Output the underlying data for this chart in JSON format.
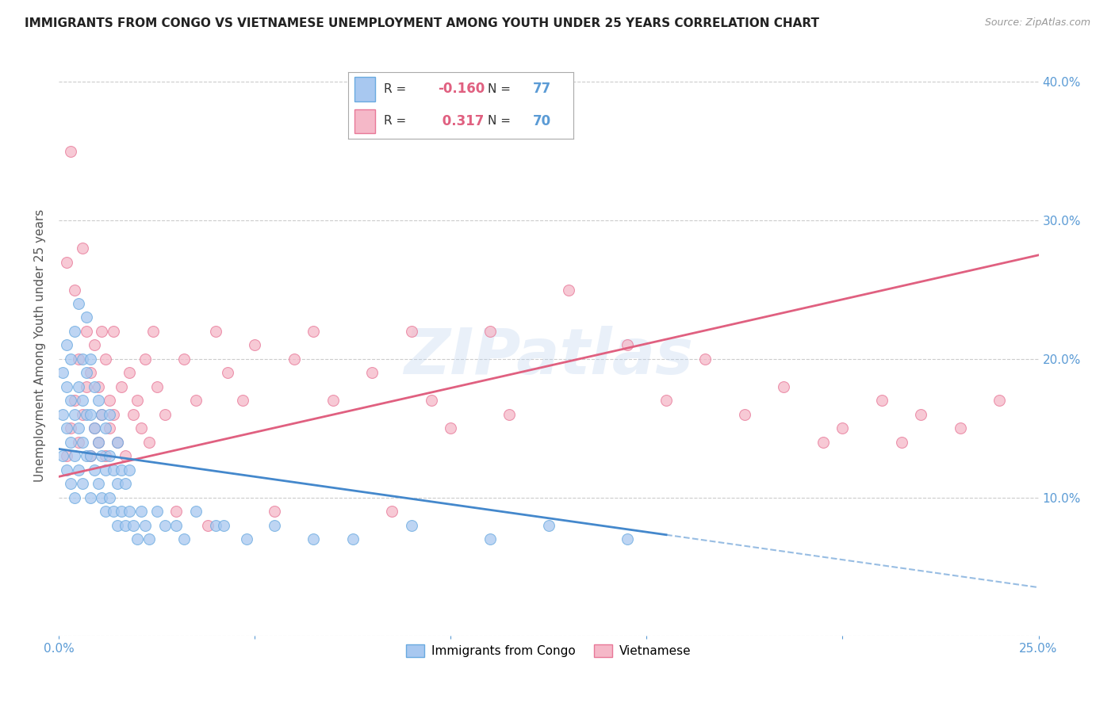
{
  "title": "IMMIGRANTS FROM CONGO VS VIETNAMESE UNEMPLOYMENT AMONG YOUTH UNDER 25 YEARS CORRELATION CHART",
  "source": "Source: ZipAtlas.com",
  "ylabel": "Unemployment Among Youth under 25 years",
  "xlim": [
    0.0,
    0.25
  ],
  "ylim": [
    0.0,
    0.42
  ],
  "yticks": [
    0.0,
    0.1,
    0.2,
    0.3,
    0.4
  ],
  "ytick_labels_right": [
    "",
    "10.0%",
    "20.0%",
    "30.0%",
    "40.0%"
  ],
  "xticks": [
    0.0,
    0.05,
    0.1,
    0.15,
    0.2,
    0.25
  ],
  "xtick_labels": [
    "0.0%",
    "",
    "",
    "",
    "",
    "25.0%"
  ],
  "congo_color": "#a8c8f0",
  "viet_color": "#f5b8c8",
  "congo_edge_color": "#6aaae0",
  "viet_edge_color": "#e87898",
  "congo_line_color": "#4488cc",
  "viet_line_color": "#e06080",
  "congo_R": -0.16,
  "congo_N": 77,
  "viet_R": 0.317,
  "viet_N": 70,
  "legend_label1": "Immigrants from Congo",
  "legend_label2": "Vietnamese",
  "watermark": "ZIPatlas",
  "title_color": "#222222",
  "axis_label_color": "#5b9bd5",
  "grid_color": "#cccccc",
  "congo_line_x0": 0.0,
  "congo_line_y0": 0.135,
  "congo_line_x1": 0.25,
  "congo_line_y1": 0.035,
  "congo_line_solid_end": 0.155,
  "viet_line_x0": 0.0,
  "viet_line_y0": 0.115,
  "viet_line_x1": 0.25,
  "viet_line_y1": 0.275,
  "congo_scatter_x": [
    0.001,
    0.001,
    0.001,
    0.002,
    0.002,
    0.002,
    0.002,
    0.003,
    0.003,
    0.003,
    0.003,
    0.004,
    0.004,
    0.004,
    0.004,
    0.005,
    0.005,
    0.005,
    0.005,
    0.006,
    0.006,
    0.006,
    0.006,
    0.007,
    0.007,
    0.007,
    0.007,
    0.008,
    0.008,
    0.008,
    0.008,
    0.009,
    0.009,
    0.009,
    0.01,
    0.01,
    0.01,
    0.011,
    0.011,
    0.011,
    0.012,
    0.012,
    0.012,
    0.013,
    0.013,
    0.013,
    0.014,
    0.014,
    0.015,
    0.015,
    0.015,
    0.016,
    0.016,
    0.017,
    0.017,
    0.018,
    0.018,
    0.019,
    0.02,
    0.021,
    0.022,
    0.023,
    0.025,
    0.027,
    0.03,
    0.032,
    0.035,
    0.04,
    0.042,
    0.048,
    0.055,
    0.065,
    0.075,
    0.09,
    0.11,
    0.125,
    0.145
  ],
  "congo_scatter_y": [
    0.13,
    0.16,
    0.19,
    0.12,
    0.15,
    0.18,
    0.21,
    0.11,
    0.14,
    0.17,
    0.2,
    0.1,
    0.13,
    0.16,
    0.22,
    0.12,
    0.15,
    0.18,
    0.24,
    0.11,
    0.14,
    0.17,
    0.2,
    0.13,
    0.16,
    0.19,
    0.23,
    0.1,
    0.13,
    0.16,
    0.2,
    0.12,
    0.15,
    0.18,
    0.11,
    0.14,
    0.17,
    0.1,
    0.13,
    0.16,
    0.09,
    0.12,
    0.15,
    0.1,
    0.13,
    0.16,
    0.09,
    0.12,
    0.08,
    0.11,
    0.14,
    0.09,
    0.12,
    0.08,
    0.11,
    0.09,
    0.12,
    0.08,
    0.07,
    0.09,
    0.08,
    0.07,
    0.09,
    0.08,
    0.08,
    0.07,
    0.09,
    0.08,
    0.08,
    0.07,
    0.08,
    0.07,
    0.07,
    0.08,
    0.07,
    0.08,
    0.07
  ],
  "viet_scatter_x": [
    0.002,
    0.002,
    0.003,
    0.003,
    0.004,
    0.004,
    0.005,
    0.005,
    0.006,
    0.006,
    0.007,
    0.007,
    0.008,
    0.008,
    0.009,
    0.009,
    0.01,
    0.01,
    0.011,
    0.011,
    0.012,
    0.012,
    0.013,
    0.013,
    0.014,
    0.014,
    0.015,
    0.016,
    0.017,
    0.018,
    0.019,
    0.02,
    0.021,
    0.022,
    0.023,
    0.024,
    0.025,
    0.027,
    0.03,
    0.032,
    0.035,
    0.038,
    0.04,
    0.043,
    0.047,
    0.05,
    0.055,
    0.06,
    0.065,
    0.07,
    0.08,
    0.085,
    0.09,
    0.095,
    0.1,
    0.11,
    0.115,
    0.13,
    0.145,
    0.155,
    0.165,
    0.175,
    0.185,
    0.195,
    0.2,
    0.21,
    0.215,
    0.22,
    0.23,
    0.24
  ],
  "viet_scatter_y": [
    0.13,
    0.27,
    0.15,
    0.35,
    0.17,
    0.25,
    0.14,
    0.2,
    0.16,
    0.28,
    0.18,
    0.22,
    0.13,
    0.19,
    0.15,
    0.21,
    0.14,
    0.18,
    0.16,
    0.22,
    0.13,
    0.2,
    0.15,
    0.17,
    0.16,
    0.22,
    0.14,
    0.18,
    0.13,
    0.19,
    0.16,
    0.17,
    0.15,
    0.2,
    0.14,
    0.22,
    0.18,
    0.16,
    0.09,
    0.2,
    0.17,
    0.08,
    0.22,
    0.19,
    0.17,
    0.21,
    0.09,
    0.2,
    0.22,
    0.17,
    0.19,
    0.09,
    0.22,
    0.17,
    0.15,
    0.22,
    0.16,
    0.25,
    0.21,
    0.17,
    0.2,
    0.16,
    0.18,
    0.14,
    0.15,
    0.17,
    0.14,
    0.16,
    0.15,
    0.17
  ]
}
